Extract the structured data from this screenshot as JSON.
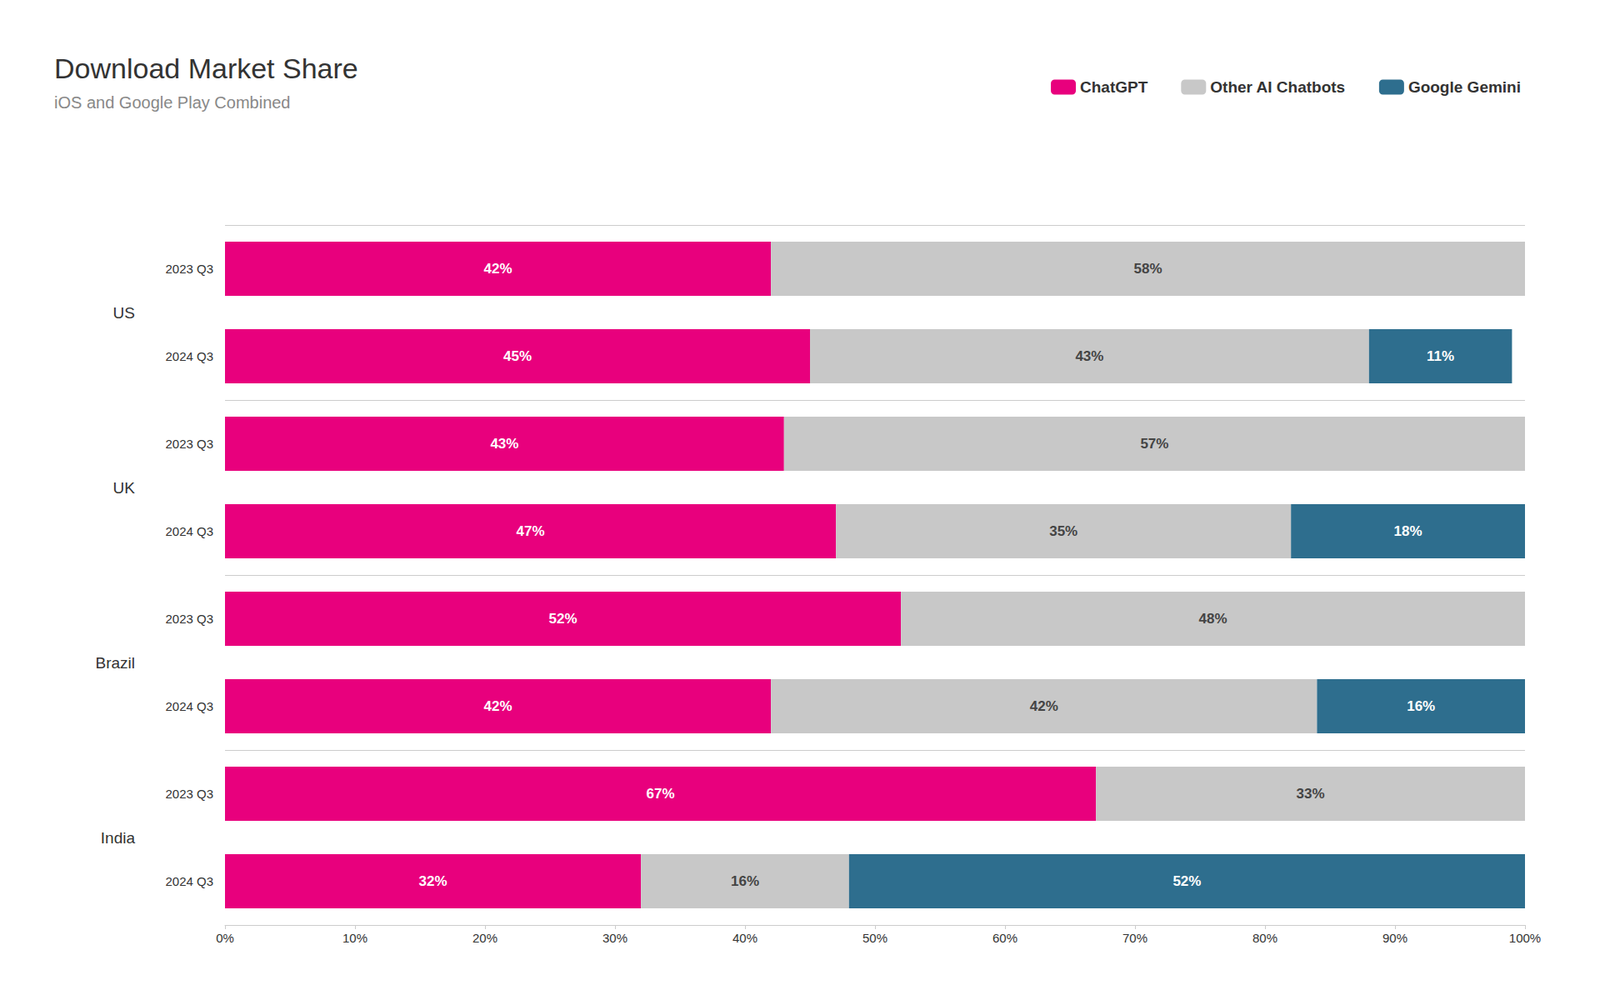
{
  "chart_data": {
    "type": "bar",
    "orientation": "horizontal",
    "stacked": true,
    "title": "Download Market Share",
    "subtitle": "iOS and Google Play Combined",
    "groups": [
      {
        "name": "US",
        "categories": [
          "2023 Q3",
          "2024 Q3"
        ]
      },
      {
        "name": "UK",
        "categories": [
          "2023 Q3",
          "2024 Q3"
        ]
      },
      {
        "name": "Brazil",
        "categories": [
          "2023 Q3",
          "2024 Q3"
        ]
      },
      {
        "name": "India",
        "categories": [
          "2023 Q3",
          "2024 Q3"
        ]
      }
    ],
    "series": [
      {
        "name": "ChatGPT",
        "color": "#E8007D",
        "values": [
          42,
          45,
          43,
          47,
          52,
          42,
          67,
          32
        ],
        "value_labels": [
          "42%",
          "45%",
          "43%",
          "47%",
          "52%",
          "42%",
          "67%",
          "32%"
        ]
      },
      {
        "name": "Other AI Chatbots",
        "color": "#C8C8C8",
        "values": [
          58,
          43,
          57,
          35,
          48,
          42,
          33,
          16
        ],
        "value_labels": [
          "58%",
          "43%",
          "57%",
          "35%",
          "48%",
          "42%",
          "33%",
          "16%"
        ]
      },
      {
        "name": "Google Gemini",
        "color": "#2E6E8E",
        "values": [
          0,
          11,
          0,
          18,
          0,
          16,
          0,
          52
        ],
        "value_labels": [
          null,
          "11%",
          null,
          "18%",
          null,
          "16%",
          null,
          "52%"
        ]
      }
    ],
    "xlim": [
      0,
      100
    ],
    "xticks": [
      {
        "value": 0,
        "label": "0%"
      },
      {
        "value": 10,
        "label": "10%"
      },
      {
        "value": 20,
        "label": "20%"
      },
      {
        "value": 30,
        "label": "30%"
      },
      {
        "value": 40,
        "label": "40%"
      },
      {
        "value": 50,
        "label": "50%"
      },
      {
        "value": 60,
        "label": "60%"
      },
      {
        "value": 70,
        "label": "70%"
      },
      {
        "value": 80,
        "label": "80%"
      },
      {
        "value": 90,
        "label": "90%"
      },
      {
        "value": 100,
        "label": "100%"
      }
    ],
    "data_labels": true,
    "grid": false,
    "legend": "top"
  }
}
